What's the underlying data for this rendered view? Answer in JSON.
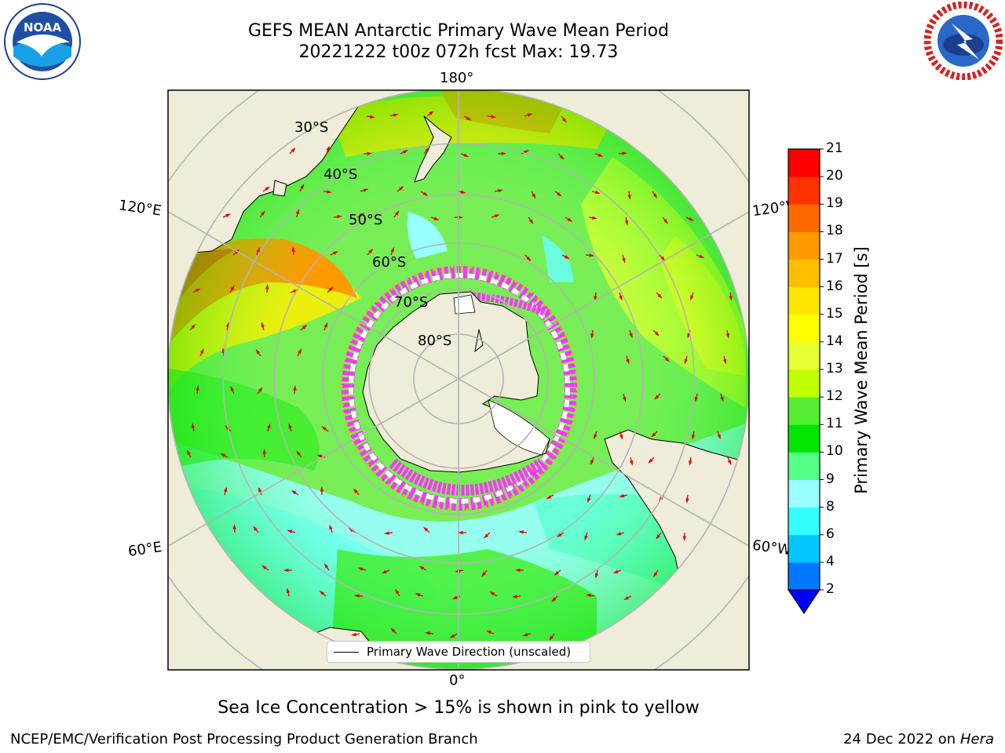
{
  "title": {
    "line1": "GEFS MEAN Antarctic Primary Wave Mean Period",
    "line2": "20221222 t00z 072h fcst   Max: 19.73"
  },
  "logos": {
    "noaa": {
      "text": "NOAA",
      "ring_text": "NATIONAL OCEANIC AND ATMOSPHERIC ADMINISTRATION · U.S. DEPARTMENT OF COMMERCE"
    },
    "nws": {
      "ring_text": "NATIONAL WEATHER SERVICE"
    }
  },
  "map": {
    "projection": "south-polar-stereographic",
    "longitude_labels": {
      "top": "180°",
      "bottom": "0°",
      "upper_left": "120°E",
      "upper_right": "120°W",
      "lower_left": "60°E",
      "lower_right": "60°W"
    },
    "latitude_labels": [
      "30°S",
      "40°S",
      "50°S",
      "60°S",
      "70°S",
      "80°S"
    ],
    "legend": "Primary Wave Direction (unscaled)",
    "arrow_color": "#e60000",
    "land_color": "#efedd9",
    "ice_colors": [
      "#ff33ff",
      "#ffffff",
      "#ffb000"
    ]
  },
  "colorbar": {
    "label": "Primary Wave Mean Period [s]",
    "ticks": [
      "2",
      "4",
      "6",
      "8",
      "9",
      "10",
      "11",
      "12",
      "13",
      "14",
      "15",
      "16",
      "17",
      "18",
      "19",
      "20",
      "21"
    ],
    "colors": [
      "#0077ff",
      "#00c8ff",
      "#33ffff",
      "#99ffff",
      "#55ff88",
      "#00e600",
      "#55ee33",
      "#bfff00",
      "#e6ff33",
      "#ffff00",
      "#ffe600",
      "#ffbf00",
      "#ff9a00",
      "#ff6a00",
      "#ff3300",
      "#ff0000"
    ],
    "under_color": "#0000ff"
  },
  "notes": {
    "ice": "Sea Ice Concentration > 15% is shown in pink to yellow"
  },
  "footer": {
    "left": "NCEP/EMC/Verification Post Processing Product Generation Branch",
    "date": "24 Dec 2022 on",
    "machine": "Hera"
  }
}
